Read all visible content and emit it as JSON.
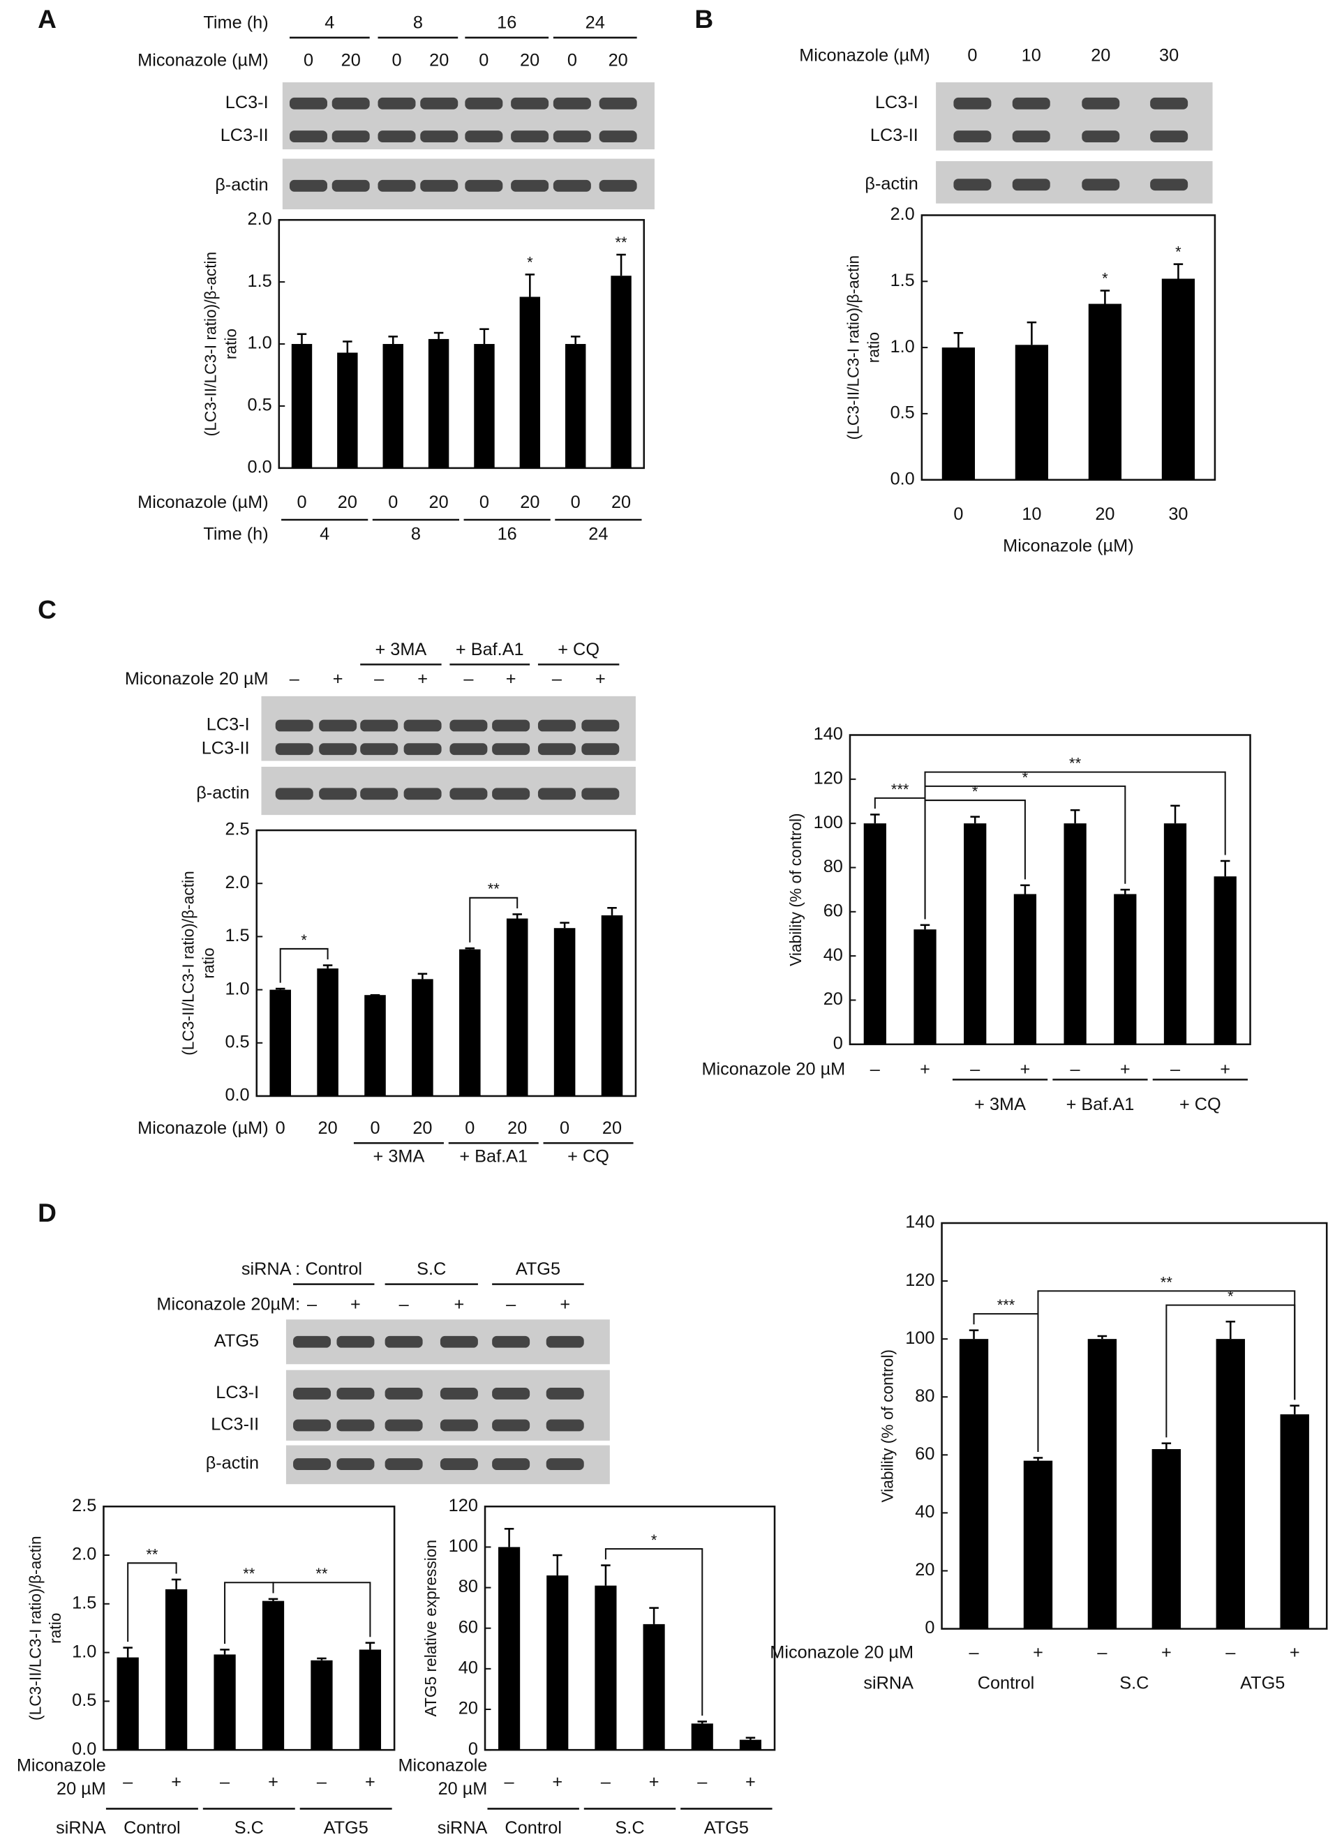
{
  "panels": [
    "A",
    "B",
    "C",
    "D"
  ],
  "blots": [
    {
      "header": [
        {
          "label": "Time (h)",
          "items": [
            "4",
            "8",
            "16",
            "24"
          ]
        },
        {
          "label": "Miconazole (µM)",
          "items": [
            "0",
            "20",
            "0",
            "20",
            "0",
            "20",
            "0",
            "20"
          ]
        }
      ],
      "strips": [
        [
          "LC3-I",
          "LC3-II"
        ],
        [
          "β-actin"
        ]
      ]
    },
    {
      "header": [
        {
          "label": "Miconazole (µM)",
          "items": [
            "0",
            "10",
            "20",
            "30"
          ]
        }
      ],
      "strips": [
        [
          "LC3-I",
          "LC3-II"
        ],
        [
          "β-actin"
        ]
      ]
    },
    {
      "header": [
        {
          "items": [
            null,
            "+ 3MA",
            "+ Baf.A1",
            "+ CQ"
          ]
        },
        {
          "label": "Miconazole 20 µM",
          "items": [
            "–",
            "+",
            "–",
            "+",
            "–",
            "+",
            "–",
            "+"
          ]
        }
      ],
      "strips": [
        [
          "LC3-I",
          "LC3-II"
        ],
        [
          "β-actin"
        ]
      ]
    },
    {
      "header": [
        {
          "label": "siRNA :",
          "items": [
            "Control",
            "S.C",
            "ATG5"
          ]
        },
        {
          "label": "Miconazole 20µM:",
          "items": [
            "–",
            "+",
            "–",
            "+",
            "–",
            "+"
          ]
        }
      ],
      "strips": [
        [
          "ATG5"
        ],
        [
          "LC3-I",
          "LC3-II"
        ],
        [
          "β-actin"
        ]
      ]
    }
  ],
  "chart_data": [
    {
      "type": "bar",
      "ylabel": [
        "(LC3-II/LC3-I ratio)/β-actin",
        "ratio"
      ],
      "categories": [
        "0",
        "20",
        "0",
        "20",
        "0",
        "20",
        "0",
        "20"
      ],
      "groups": [
        "4",
        "8",
        "16",
        "24"
      ],
      "row_labels": [
        "Miconazole (µM)",
        "Time (h)"
      ],
      "group_lines": true,
      "values": [
        1.0,
        0.93,
        1.0,
        1.04,
        1.0,
        1.38,
        1.0,
        1.55
      ],
      "errors": [
        0.08,
        0.09,
        0.06,
        0.05,
        0.12,
        0.18,
        0.06,
        0.17
      ],
      "significance": [
        null,
        null,
        null,
        null,
        null,
        "*",
        null,
        "**"
      ],
      "color": "#000000",
      "ylim": [
        0,
        2
      ],
      "yticks": [
        {
          "value": 0,
          "label": "0.0"
        },
        0.5,
        {
          "value": 1,
          "label": "1.0"
        },
        1.5,
        {
          "value": 2,
          "label": "2.0"
        }
      ]
    },
    {
      "type": "bar",
      "ylabel": [
        "(LC3-II/LC3-I ratio)/β-actin",
        "ratio"
      ],
      "xlabel": "Miconazole (µM)",
      "categories": [
        "0",
        "10",
        "20",
        "30"
      ],
      "values": [
        1.0,
        1.02,
        1.33,
        1.52
      ],
      "errors": [
        0.11,
        0.17,
        0.1,
        0.11
      ],
      "significance": [
        null,
        null,
        "*",
        "*"
      ],
      "color": "#000000",
      "ylim": [
        0,
        2
      ],
      "yticks": [
        {
          "value": 0,
          "label": "0.0"
        },
        0.5,
        {
          "value": 1,
          "label": "1.0"
        },
        1.5,
        {
          "value": 2,
          "label": "2.0"
        }
      ]
    },
    {
      "type": "bar",
      "ylabel": [
        "(LC3-II/LC3-I ratio)/β-actin",
        "ratio"
      ],
      "categories": [
        "0",
        "20",
        "0",
        "20",
        "0",
        "20",
        "0",
        "20"
      ],
      "groups": [
        null,
        "+ 3MA",
        "+ Baf.A1",
        "+ CQ"
      ],
      "row_labels": [
        "Miconazole (µM)"
      ],
      "group_lines": true,
      "values": [
        1.0,
        1.2,
        0.95,
        1.1,
        1.38,
        1.67,
        1.58,
        1.7
      ],
      "errors": [
        0.01,
        0.03,
        0.0,
        0.05,
        0.01,
        0.04,
        0.05,
        0.07
      ],
      "brackets": [
        {
          "label": "*",
          "between": [
            0,
            1
          ]
        },
        {
          "label": "**",
          "between": [
            4,
            5
          ]
        }
      ],
      "color": "#000000",
      "ylim": [
        0,
        2.5
      ],
      "yticks": [
        {
          "value": 0,
          "label": "0.0"
        },
        0.5,
        {
          "value": 1,
          "label": "1.0"
        },
        1.5,
        {
          "value": 2,
          "label": "2.0"
        },
        2.5
      ]
    },
    {
      "type": "bar",
      "ylabel": [
        "Viability (% of control)"
      ],
      "categories": [
        "–",
        "+",
        "–",
        "+",
        "–",
        "+",
        "–",
        "+"
      ],
      "groups": [
        null,
        "+ 3MA",
        "+ Baf.A1",
        "+ CQ"
      ],
      "row_labels": [
        "Miconazole 20 µM"
      ],
      "group_lines": true,
      "values": [
        100,
        52,
        100,
        68,
        100,
        68,
        100,
        76
      ],
      "errors": [
        4,
        2,
        3,
        4,
        6,
        2,
        8,
        7
      ],
      "brackets": [
        {
          "label": "***",
          "between": [
            0,
            1
          ]
        },
        {
          "label": "*",
          "between": [
            1,
            3
          ]
        },
        {
          "label": "*",
          "between": [
            1,
            5
          ]
        },
        {
          "label": "**",
          "between": [
            1,
            7
          ]
        }
      ],
      "color": "#000000",
      "ylim": [
        0,
        140
      ],
      "yticks": [
        0,
        20,
        40,
        60,
        80,
        100,
        120,
        140
      ]
    },
    {
      "type": "bar",
      "ylabel": [
        "(LC3-II/LC3-I ratio)/β-actin",
        "ratio"
      ],
      "categories": [
        "–",
        "+",
        "–",
        "+",
        "–",
        "+"
      ],
      "groups": [
        "Control",
        "S.C",
        "ATG5"
      ],
      "row_labels": [
        [
          "Miconazole",
          "20 µM"
        ],
        "siRNA"
      ],
      "group_lines": true,
      "values": [
        0.95,
        1.65,
        0.98,
        1.53,
        0.92,
        1.03
      ],
      "errors": [
        0.1,
        0.1,
        0.05,
        0.02,
        0.02,
        0.07
      ],
      "brackets": [
        {
          "label": "**",
          "between": [
            0,
            1
          ]
        },
        {
          "label": "**",
          "between": [
            2,
            3
          ]
        },
        {
          "label": "**",
          "between": [
            3,
            5
          ]
        }
      ],
      "color": "#000000",
      "ylim": [
        0,
        2.5
      ],
      "yticks": [
        {
          "value": 0,
          "label": "0.0"
        },
        0.5,
        {
          "value": 1,
          "label": "1.0"
        },
        1.5,
        {
          "value": 2,
          "label": "2.0"
        },
        2.5
      ]
    },
    {
      "type": "bar",
      "ylabel": [
        "ATG5 relative expression"
      ],
      "categories": [
        "–",
        "+",
        "–",
        "+",
        "–",
        "+"
      ],
      "groups": [
        "Control",
        "S.C",
        "ATG5"
      ],
      "row_labels": [
        [
          "Miconazole",
          "20 µM"
        ],
        "siRNA"
      ],
      "group_lines": true,
      "values": [
        100,
        86,
        81,
        62,
        13,
        5
      ],
      "errors": [
        9,
        10,
        10,
        8,
        1,
        1
      ],
      "brackets": [
        {
          "label": "*",
          "between": [
            2,
            4
          ]
        }
      ],
      "color": "#000000",
      "ylim": [
        0,
        120
      ],
      "yticks": [
        0,
        20,
        40,
        60,
        80,
        100,
        120
      ]
    },
    {
      "type": "bar",
      "ylabel": [
        "Viability (% of control)"
      ],
      "categories": [
        "–",
        "+",
        "–",
        "+",
        "–",
        "+"
      ],
      "groups": [
        "Control",
        "S.C",
        "ATG5"
      ],
      "row_labels": [
        "Miconazole 20 µM",
        "siRNA"
      ],
      "group_lines": false,
      "values": [
        100,
        58,
        100,
        62,
        100,
        74
      ],
      "errors": [
        3,
        1,
        1,
        2,
        6,
        3
      ],
      "brackets": [
        {
          "label": "***",
          "between": [
            0,
            1
          ]
        },
        {
          "label": "*",
          "between": [
            3,
            5
          ]
        },
        {
          "label": "**",
          "between": [
            1,
            5
          ]
        }
      ],
      "color": "#000000",
      "ylim": [
        0,
        140
      ],
      "yticks": [
        0,
        20,
        40,
        60,
        80,
        100,
        120,
        140
      ]
    }
  ]
}
